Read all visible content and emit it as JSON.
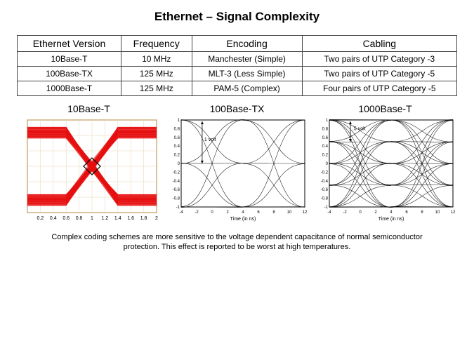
{
  "title": "Ethernet – Signal Complexity",
  "table": {
    "columns": [
      "Ethernet Version",
      "Frequency",
      "Encoding",
      "Cabling"
    ],
    "rows": [
      [
        "10Base-T",
        "10 MHz",
        "Manchester (Simple)",
        "Two pairs of UTP Category -3"
      ],
      [
        "100Base-TX",
        "125 MHz",
        "MLT-3 (Less Simple)",
        "Two pairs of UTP Category -5"
      ],
      [
        "1000Base-T",
        "125 MHz",
        "PAM-5 (Complex)",
        "Four pairs of UTP Category -5"
      ]
    ]
  },
  "charts": {
    "c10": {
      "title": "10Base-T",
      "type": "eye-diagram-noisy",
      "trace_color": "#e61010",
      "background_color": "#ffffff",
      "grid_color": "#e6d4b3",
      "border_color": "#b08a3e",
      "xlim": [
        0,
        2.0
      ],
      "xticks": [
        "0.2",
        "0.4",
        "0.6",
        "0.8",
        "1",
        "1.2",
        "1.4",
        "1.6",
        "1.8",
        "2"
      ],
      "noise_thickness": 16,
      "yticks": [],
      "marker_shape": "diamond"
    },
    "c100": {
      "title": "100Base-TX",
      "type": "eye-diagram",
      "trace_color": "#000000",
      "background_color": "#ffffff",
      "grid_color": "#cccccc",
      "border_color": "#000000",
      "xlim": [
        -4,
        12
      ],
      "xlabel": "Time (in ns)",
      "xticks": [
        "-4",
        "-2",
        "0",
        "2",
        "4",
        "6",
        "8",
        "10",
        "12"
      ],
      "yticks": [
        "-1",
        "-0.8",
        "-0.6",
        "-0.4",
        "-0.2",
        "0",
        "0.2",
        "0.4",
        "0.6",
        "0.8",
        "1"
      ],
      "annotation": "1 volt",
      "levels": 3
    },
    "c1000": {
      "title": "1000Base-T",
      "type": "eye-diagram-dense",
      "trace_color": "#000000",
      "background_color": "#ffffff",
      "grid_color": "#cccccc",
      "border_color": "#000000",
      "xlim": [
        -4,
        12
      ],
      "xlabel": "Time (in ns)",
      "xticks": [
        "-4",
        "-2",
        "0",
        "2",
        "4",
        "6",
        "8",
        "10",
        "12"
      ],
      "yticks": [
        "-1",
        "-0.8",
        "-0.6",
        "-0.4",
        "-0.2",
        "0",
        "0.2",
        "0.4",
        "0.6",
        "0.8",
        "1"
      ],
      "annotation": ".5 volt",
      "levels": 5
    }
  },
  "caption": "Complex coding schemes are more sensitive to the voltage dependent capacitance of normal semiconductor protection. This effect is reported to be worst at high temperatures."
}
